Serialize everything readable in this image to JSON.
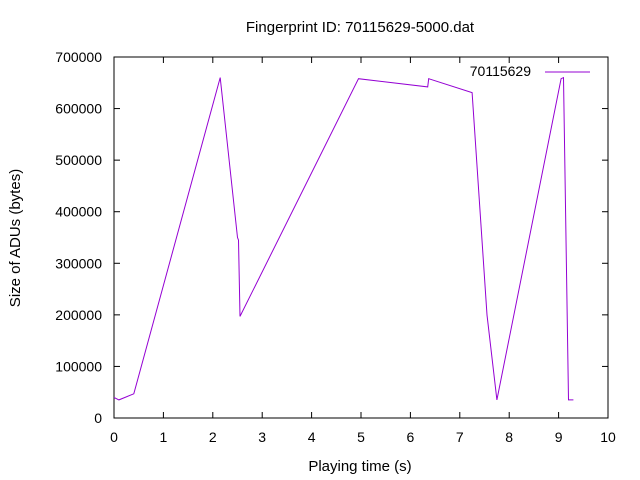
{
  "chart_data": {
    "type": "line",
    "title": "Fingerprint ID: 70115629-5000.dat",
    "xlabel": "Playing time (s)",
    "ylabel": "Size of ADUs (bytes)",
    "xlim": [
      0,
      10
    ],
    "ylim": [
      0,
      700000
    ],
    "xticks": [
      0,
      1,
      2,
      3,
      4,
      5,
      6,
      7,
      8,
      9,
      10
    ],
    "yticks": [
      0,
      100000,
      200000,
      300000,
      400000,
      500000,
      600000,
      700000
    ],
    "grid": false,
    "legend_position": "top-right",
    "series": [
      {
        "name": "70115629",
        "color": "#9400d3",
        "x": [
          0.0,
          0.1,
          0.4,
          2.15,
          2.5,
          2.52,
          2.55,
          4.95,
          6.35,
          6.37,
          6.4,
          7.25,
          7.55,
          7.75,
          9.05,
          9.1,
          9.2,
          9.3
        ],
        "y": [
          40000,
          35000,
          47000,
          660000,
          350000,
          345000,
          197000,
          658000,
          642000,
          658000,
          657000,
          631000,
          200000,
          35000,
          658000,
          660000,
          35000,
          35000
        ]
      }
    ]
  }
}
